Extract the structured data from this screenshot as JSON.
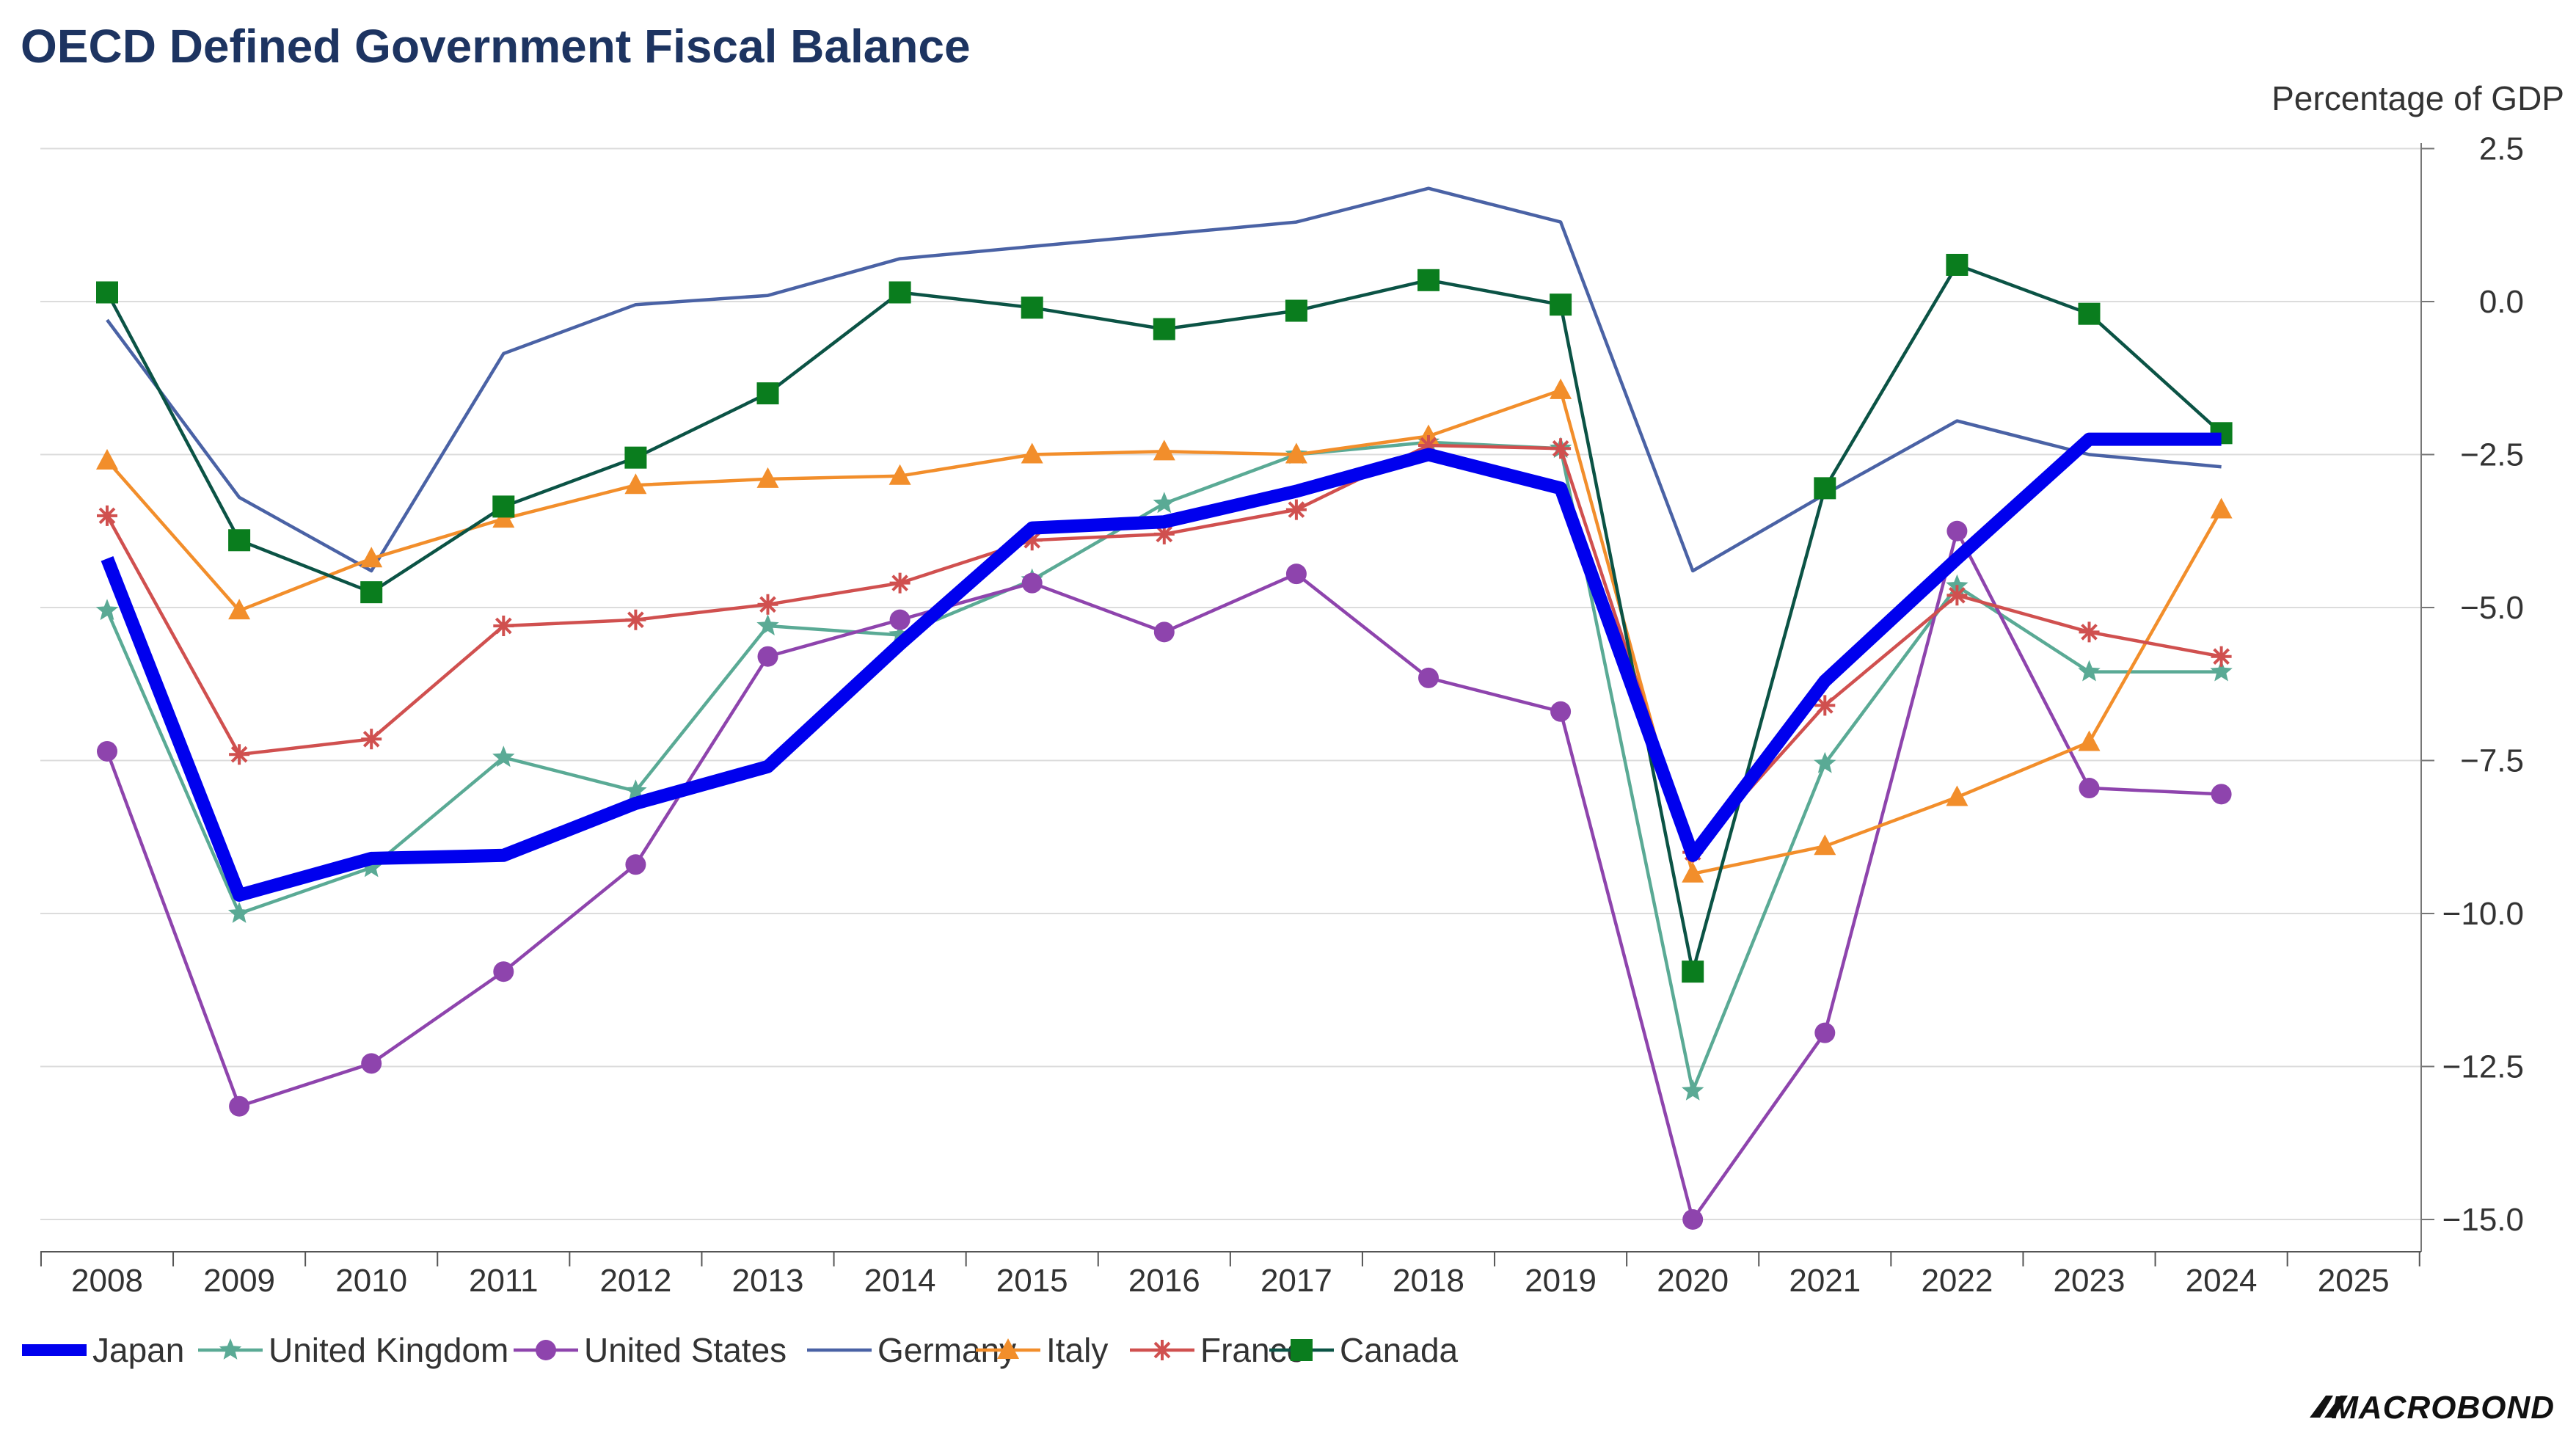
{
  "chart_data": {
    "type": "line",
    "title": "OECD Defined Government Fiscal Balance",
    "ylabel": "Percentage of GDP",
    "xlabel": "",
    "categories": [
      "2008",
      "2009",
      "2010",
      "2011",
      "2012",
      "2013",
      "2014",
      "2015",
      "2016",
      "2017",
      "2018",
      "2019",
      "2020",
      "2021",
      "2022",
      "2023",
      "2024",
      "2025"
    ],
    "yticks": [
      2.5,
      0.0,
      -2.5,
      -5.0,
      -7.5,
      -10.0,
      -12.5,
      -15.0
    ],
    "ytick_labels": [
      "2.5",
      "0.0",
      "−2.5",
      "−5.0",
      "−7.5",
      "−10.0",
      "−12.5",
      "−15.0"
    ],
    "ylim": [
      -15.3,
      2.6
    ],
    "y_axis_side": "right",
    "grid": true,
    "legend_position": "bottom-left",
    "source_brand": "MACROBOND",
    "series": [
      {
        "name": "Japan",
        "color": "#0000ee",
        "marker": "none",
        "values": [
          -4.2,
          -9.7,
          -9.1,
          -9.05,
          -8.2,
          -7.6,
          -5.6,
          -3.7,
          -3.6,
          -3.1,
          -2.5,
          -3.05,
          -9.05,
          -6.2,
          -4.2,
          -2.25,
          -2.25,
          null
        ]
      },
      {
        "name": "United Kingdom",
        "color": "#5aaa95",
        "marker": "star",
        "values": [
          -5.05,
          -10.0,
          -9.25,
          -7.45,
          -8.0,
          -5.3,
          -5.45,
          -4.55,
          -3.3,
          -2.5,
          -2.3,
          -2.4,
          -12.9,
          -7.55,
          -4.65,
          -6.05,
          -6.05,
          null
        ]
      },
      {
        "name": "United States",
        "color": "#8e44ad",
        "marker": "circle",
        "values": [
          -7.35,
          -13.15,
          -12.45,
          -10.95,
          -9.2,
          -5.8,
          -5.2,
          -4.6,
          -5.4,
          -4.45,
          -6.15,
          -6.7,
          -15.0,
          -11.95,
          -3.75,
          -7.95,
          -8.05,
          null
        ]
      },
      {
        "name": "Germany",
        "color": "#4a62a5",
        "marker": "none",
        "values": [
          -0.3,
          -3.2,
          -4.4,
          -0.85,
          -0.05,
          0.1,
          0.7,
          0.9,
          1.1,
          1.3,
          1.85,
          1.3,
          -4.4,
          -3.15,
          -1.95,
          -2.5,
          -2.7,
          null
        ]
      },
      {
        "name": "Italy",
        "color": "#f28e2b",
        "marker": "triangle",
        "values": [
          -2.6,
          -5.05,
          -4.2,
          -3.55,
          -3.0,
          -2.9,
          -2.85,
          -2.5,
          -2.45,
          -2.5,
          -2.2,
          -1.45,
          -9.35,
          -8.9,
          -8.1,
          -7.2,
          -3.4,
          null
        ]
      },
      {
        "name": "France",
        "color": "#d0504f",
        "marker": "asterisk",
        "values": [
          -3.5,
          -7.4,
          -7.15,
          -5.3,
          -5.2,
          -4.95,
          -4.6,
          -3.9,
          -3.8,
          -3.4,
          -2.35,
          -2.4,
          -9.0,
          -6.6,
          -4.8,
          -5.4,
          -5.8,
          null
        ]
      },
      {
        "name": "Canada",
        "color": "#0b5345",
        "marker": "square",
        "marker_color": "#0a7d1e",
        "values": [
          0.15,
          -3.9,
          -4.75,
          -3.35,
          -2.55,
          -1.5,
          0.15,
          -0.1,
          -0.45,
          -0.15,
          0.35,
          -0.05,
          -10.95,
          -3.05,
          0.6,
          -0.2,
          -2.15,
          null
        ]
      }
    ]
  }
}
